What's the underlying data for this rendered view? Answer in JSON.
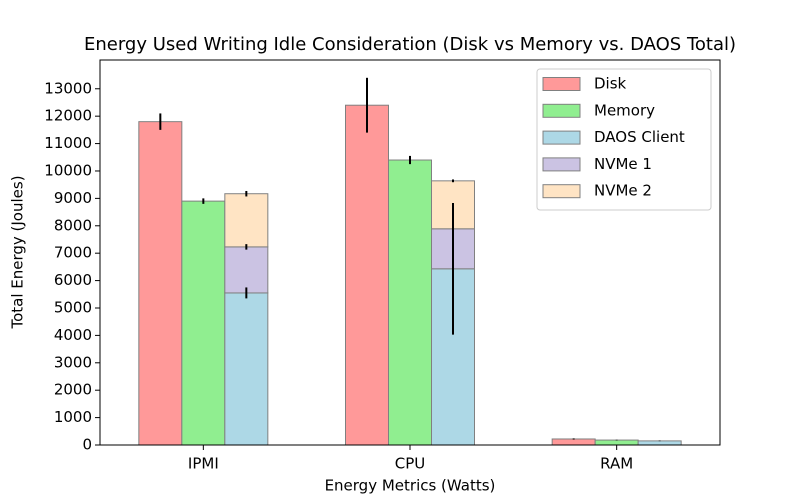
{
  "chart_data": {
    "type": "bar",
    "title": "Energy Used Writing Idle Consideration (Disk vs Memory vs. DAOS Total)",
    "xlabel": "Energy Metrics (Watts)",
    "ylabel": "Total Energy (Joules)",
    "categories": [
      "IPMI",
      "CPU",
      "RAM"
    ],
    "series": [
      {
        "name": "Disk",
        "color": "#ff9999",
        "values": [
          11800,
          12400,
          220
        ],
        "errors": [
          300,
          1000,
          20
        ]
      },
      {
        "name": "Memory",
        "color": "#90ee90",
        "values": [
          8900,
          10400,
          180
        ],
        "errors": [
          100,
          150,
          10
        ]
      },
      {
        "name": "DAOS Client",
        "color": "#add8e6",
        "values": [
          5550,
          6430,
          150
        ],
        "errors": [
          200,
          2400,
          10
        ]
      },
      {
        "name": "NVMe 1",
        "color": "#cbc3e3",
        "values": [
          1680,
          1460,
          0
        ],
        "errors": [
          100,
          0,
          0
        ],
        "stacked": true
      },
      {
        "name": "NVMe 2",
        "color": "#ffe4c4",
        "values": [
          1940,
          1750,
          0
        ],
        "errors": [
          100,
          50,
          0
        ],
        "stacked": true
      }
    ],
    "ylim": [
      0,
      14050
    ],
    "yticks": [
      0,
      1000,
      2000,
      3000,
      4000,
      5000,
      6000,
      7000,
      8000,
      9000,
      10000,
      11000,
      12000,
      13000
    ],
    "legend": "upper right"
  }
}
